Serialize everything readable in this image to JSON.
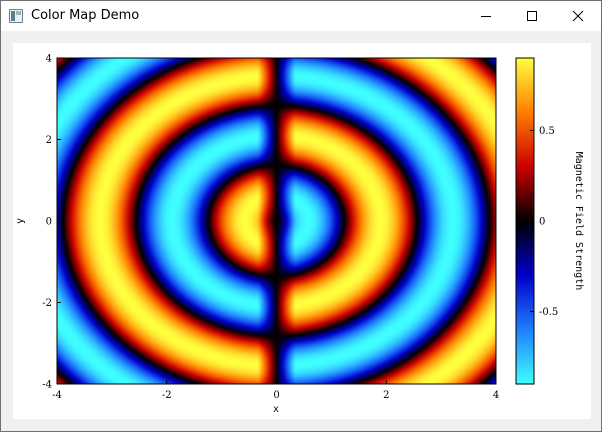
{
  "window": {
    "title": "Color Map Demo"
  },
  "controls": {
    "minimize": "minimize",
    "maximize": "maximize",
    "close": "close"
  },
  "chart_data": {
    "type": "heatmap",
    "function": "cos(r*pi) * sin(theta) style wave pattern, signed field",
    "xlabel": "x",
    "ylabel": "y",
    "xlim": [
      -4,
      4
    ],
    "ylim": [
      -4,
      4
    ],
    "xticks": [
      "-4",
      "-2",
      "0",
      "2",
      "4"
    ],
    "yticks": [
      "-4",
      "-2",
      "0",
      "2",
      "4"
    ],
    "colorbar": {
      "label": "Magnetic Field Strength",
      "range": [
        -0.9,
        0.9
      ],
      "ticks": [
        "0.5",
        "0",
        "-0.5"
      ],
      "colormap": [
        "#40ffff",
        "#1f7fff",
        "#0000cc",
        "#000000",
        "#cc0000",
        "#ff7f00",
        "#ffff40"
      ]
    }
  }
}
